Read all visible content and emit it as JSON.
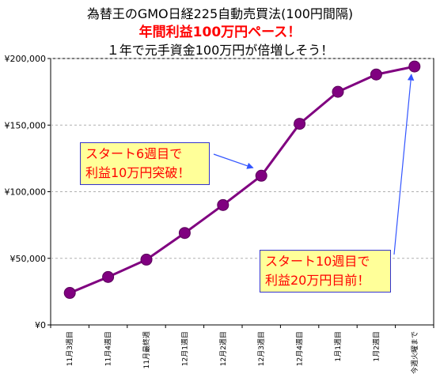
{
  "title": {
    "line1": "為替王のGMO日経225自動売買法(100円間隔)",
    "line2": "年間利益100万円ペース！",
    "line3": "１年で元手資金100万円が倍増しそう！"
  },
  "callouts": {
    "week6": {
      "line1": "スタート6週目で",
      "line2": "利益10万円突破！"
    },
    "week10": {
      "line1": "スタート10週目で",
      "line2": "利益20万円目前！"
    }
  },
  "chart_data": {
    "type": "line",
    "categories": [
      "11月3週目",
      "11月4週目",
      "11月最終週",
      "12月1週目",
      "12月2週目",
      "12月3週目",
      "12月4週目",
      "1月1週目",
      "1月2週目",
      "今週火曜まで"
    ],
    "values": [
      24000,
      36000,
      49000,
      69000,
      90000,
      112000,
      151000,
      175000,
      188000,
      194000
    ],
    "ylim": [
      0,
      200000
    ],
    "yticks": [
      0,
      50000,
      100000,
      150000,
      200000
    ],
    "ytick_labels": [
      "¥0",
      "¥50,000",
      "¥100,000",
      "¥150,000",
      "¥200,000"
    ],
    "grid": true,
    "line_color": "#800080",
    "marker_color": "#800080",
    "annotation_arrow_color": "#3355ff"
  }
}
